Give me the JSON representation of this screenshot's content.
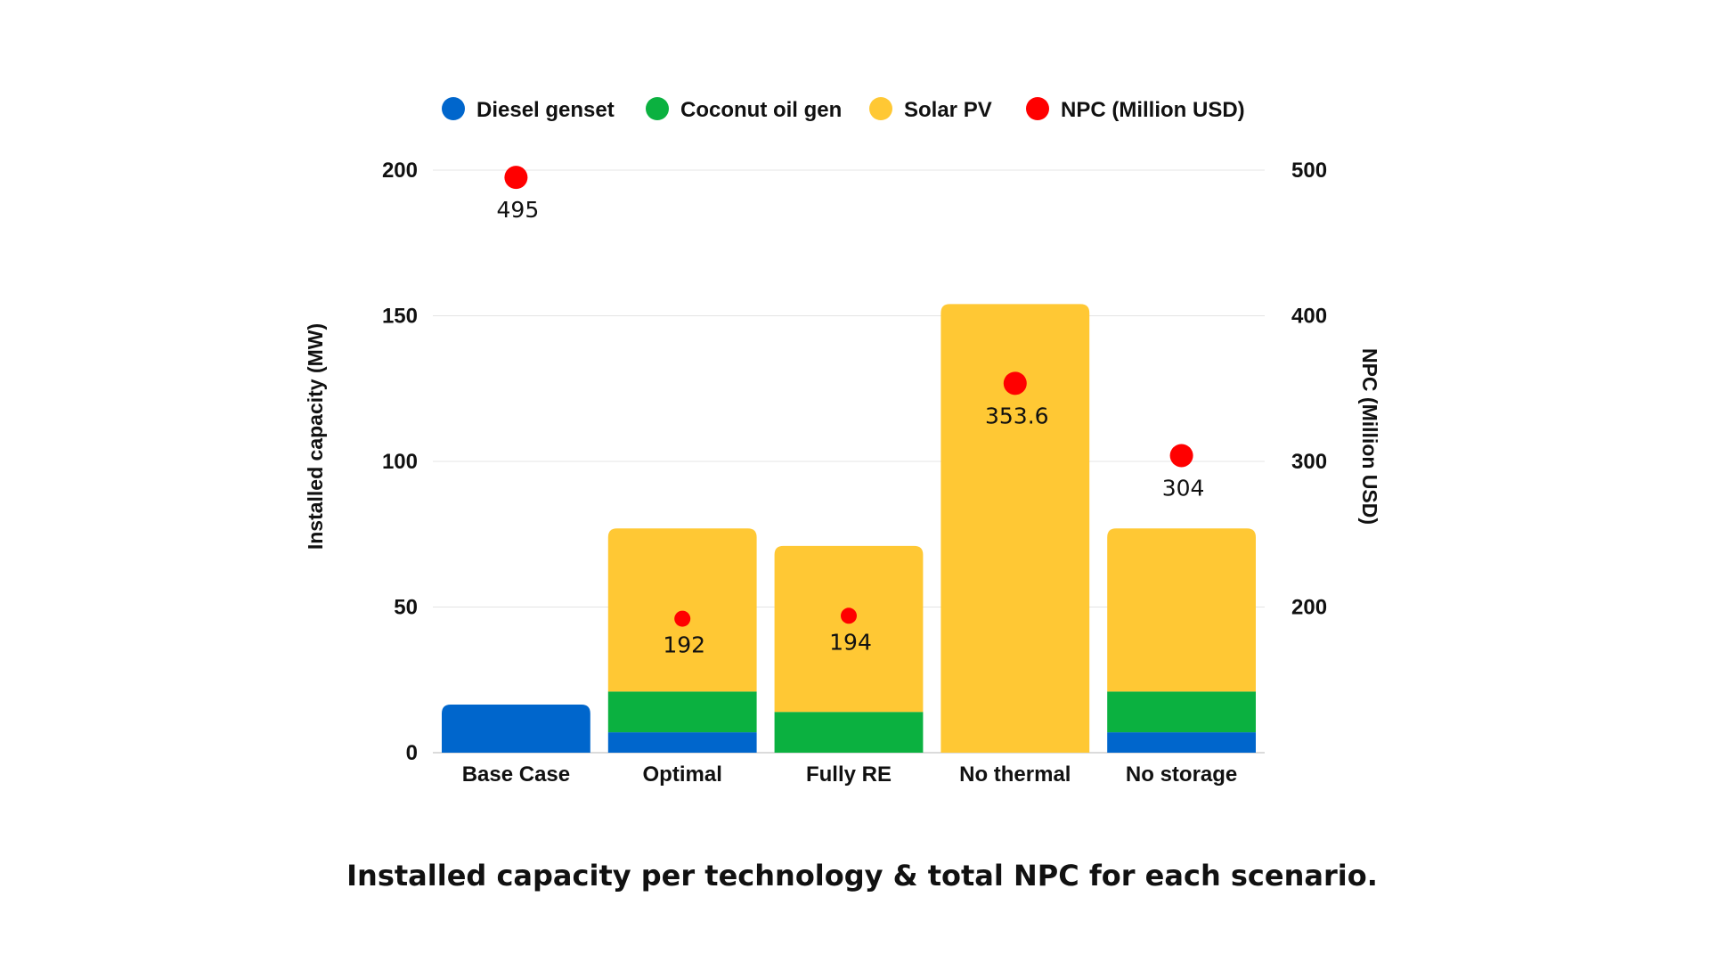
{
  "chart_data": {
    "type": "bar",
    "stacked": true,
    "title": "Installed capacity per technology & total NPC for each scenario.",
    "xlabel": "",
    "ylabel": "Installed capacity (MW)",
    "y2label": "NPC (Million USD)",
    "ylim": [
      0,
      200
    ],
    "yticks": [
      0,
      50,
      100,
      150,
      200
    ],
    "y2lim": [
      100,
      500
    ],
    "y2ticks": [
      200,
      300,
      400,
      500
    ],
    "grid": true,
    "legend_position": "top",
    "categories": [
      "Base Case",
      "Optimal",
      "Fully RE",
      "No thermal",
      "No storage"
    ],
    "series": [
      {
        "name": "Diesel genset",
        "color": "#0066CC",
        "type": "bar",
        "values": [
          16.5,
          7,
          0,
          0,
          7
        ]
      },
      {
        "name": "Coconut oil gen",
        "color": "#0BB140",
        "type": "bar",
        "values": [
          0,
          14,
          14,
          0,
          14
        ]
      },
      {
        "name": "Solar PV",
        "color": "#FFC834",
        "type": "bar",
        "values": [
          0,
          56,
          57,
          154,
          56
        ]
      },
      {
        "name": "NPC (Million USD)",
        "color": "#FF0000",
        "type": "scatter",
        "axis": "right",
        "values": [
          495,
          192,
          194,
          353.6,
          304
        ],
        "labels": [
          "495",
          "192",
          "194",
          "353.6",
          "304"
        ]
      }
    ]
  }
}
